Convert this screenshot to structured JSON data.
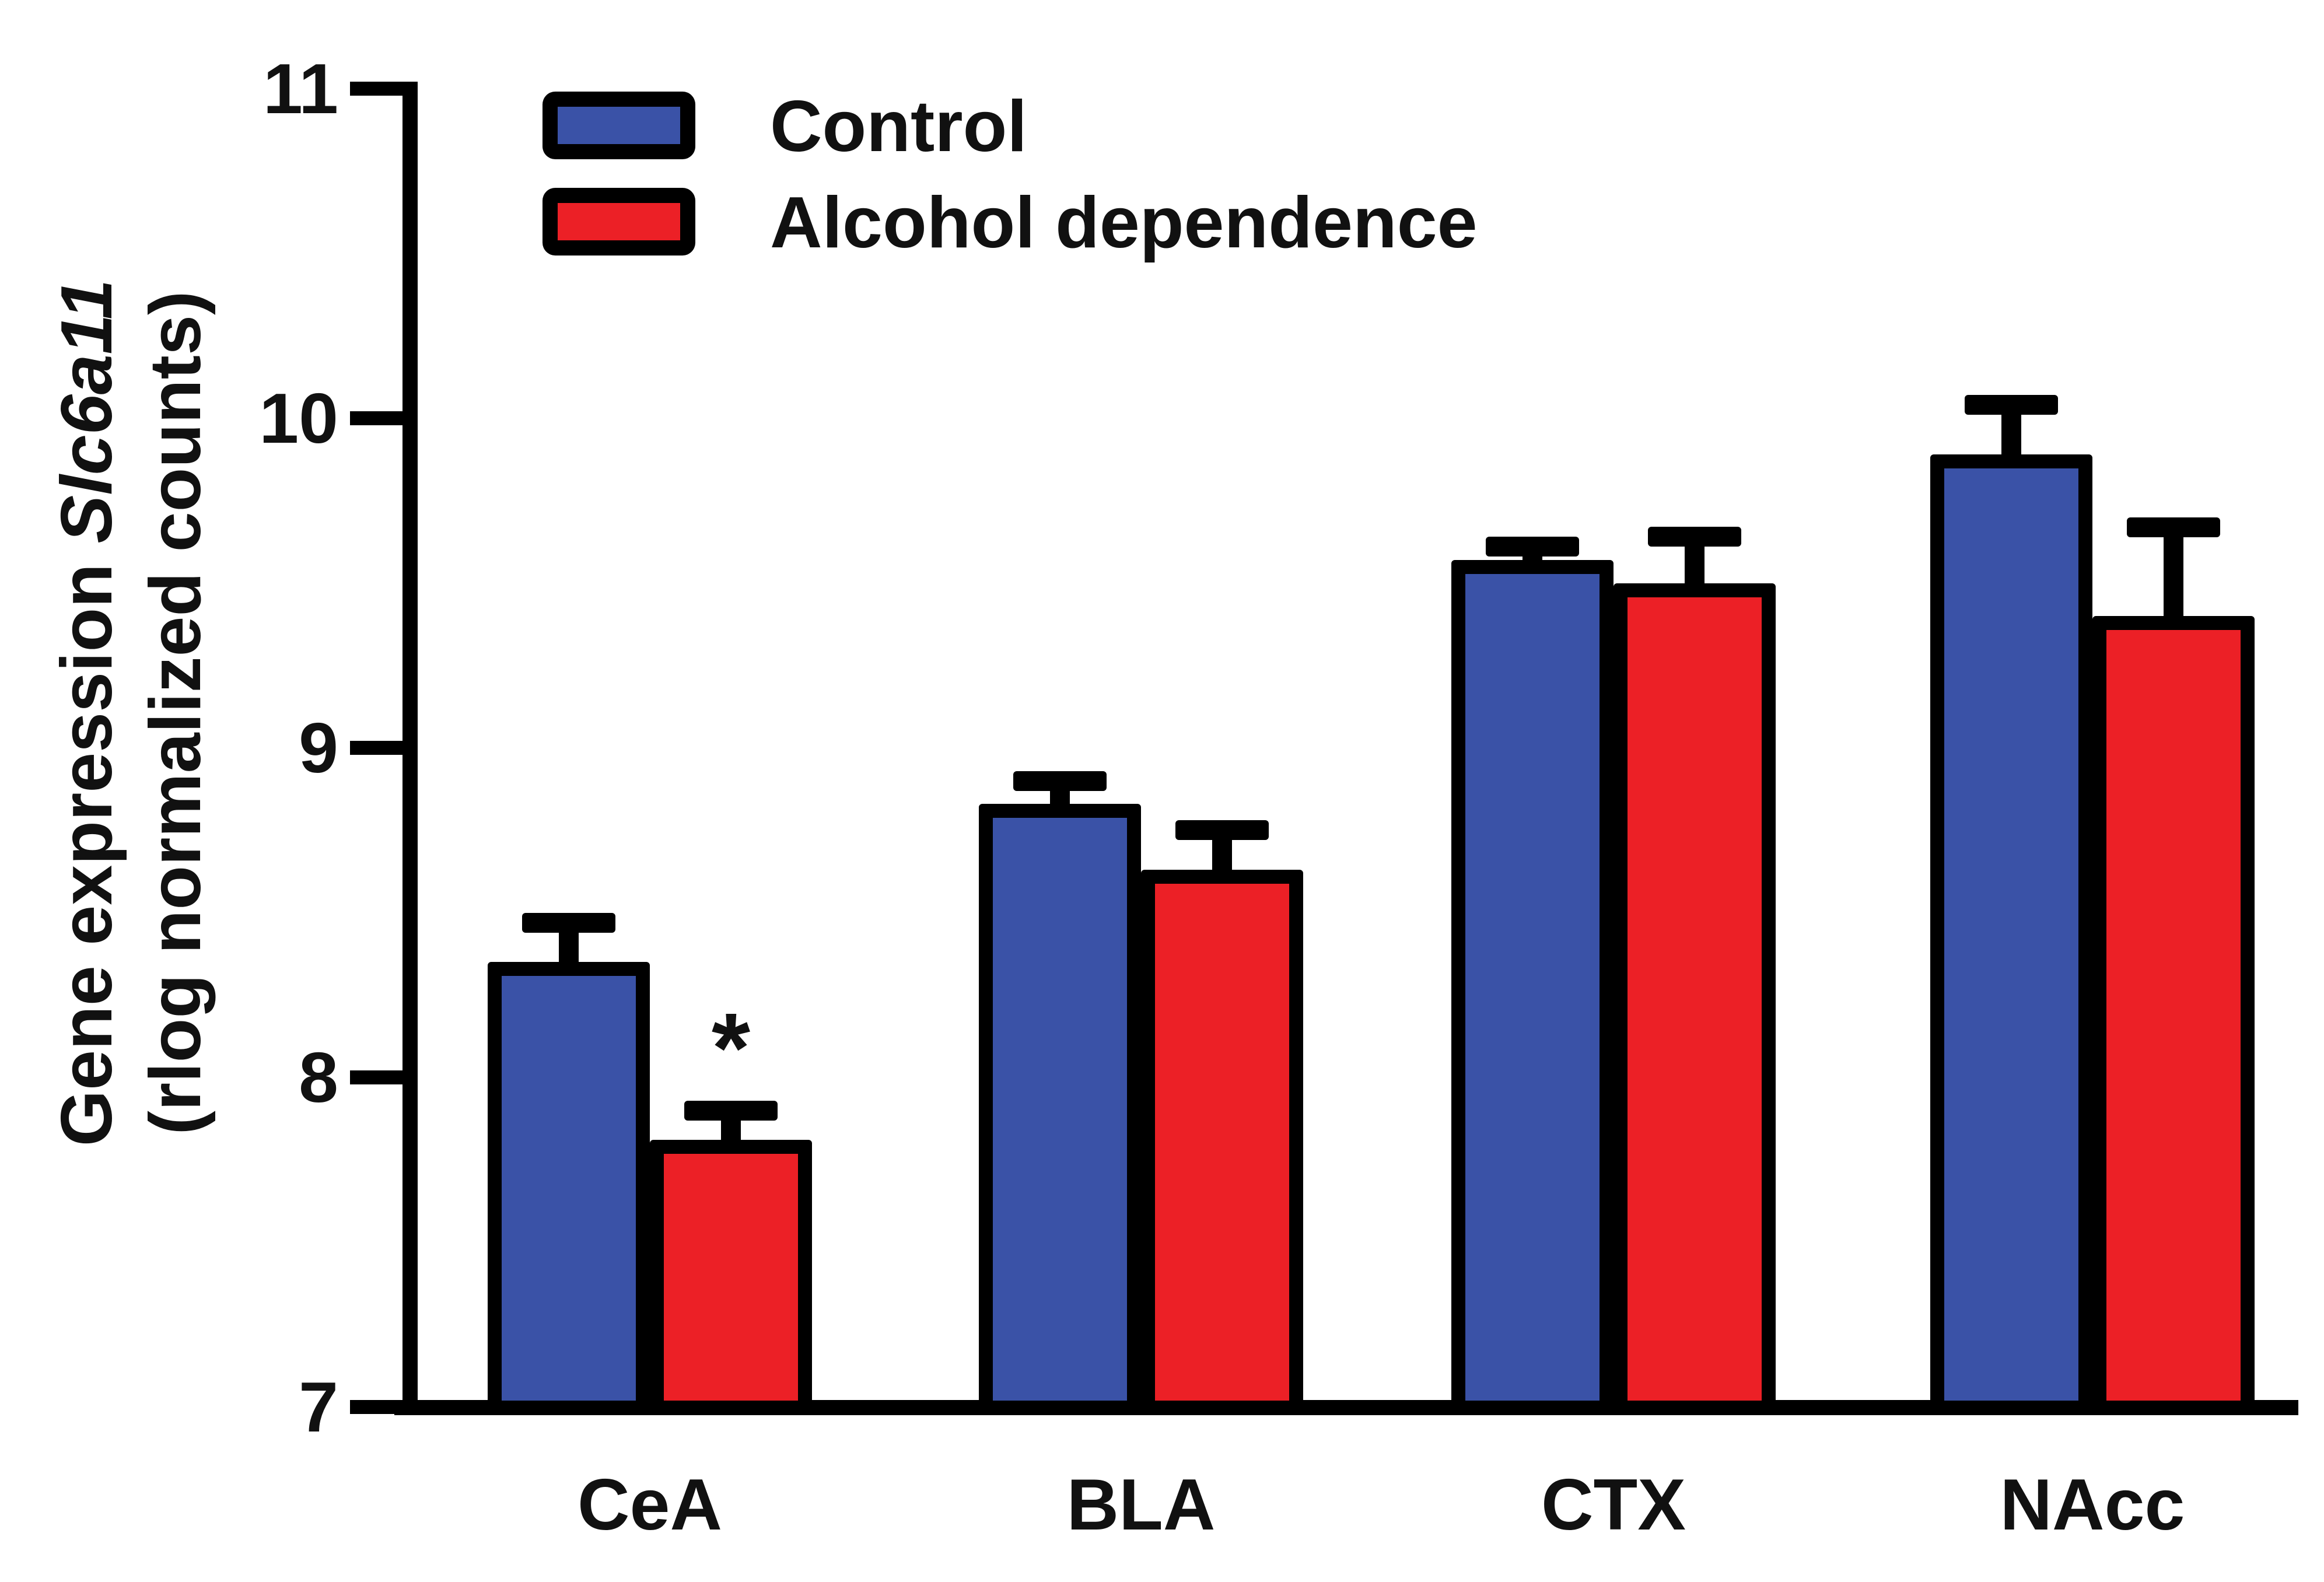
{
  "figure": {
    "background": "#ffffff"
  },
  "ylabel": {
    "line1_prefix": "Gene expression ",
    "line1_gene": "Slc6a11",
    "line2": "(rlog normalized counts)"
  },
  "legend": {
    "position": "top-left-inside",
    "items": [
      {
        "label": "Control",
        "color": "#3A52A7"
      },
      {
        "label": "Alcohol dependence",
        "color": "#EC2026"
      }
    ]
  },
  "chart_data": {
    "type": "bar",
    "categories": [
      "CeA",
      "BLA",
      "CTX",
      "NAcc"
    ],
    "series": [
      {
        "name": "Control",
        "color": "#3A52A7",
        "values": [
          8.35,
          8.83,
          9.57,
          9.89
        ],
        "errors": [
          0.15,
          0.1,
          0.07,
          0.18
        ]
      },
      {
        "name": "Alcohol dependence",
        "color": "#EC2026",
        "values": [
          7.81,
          8.63,
          9.5,
          9.4
        ],
        "errors": [
          0.12,
          0.15,
          0.17,
          0.3
        ]
      }
    ],
    "error_bars": "SEM, upper only",
    "significance": [
      {
        "category": "CeA",
        "series": "Alcohol dependence",
        "symbol": "*"
      }
    ],
    "title": "",
    "xlabel": "",
    "ylabel": "Gene expression Slc6a11 (rlog normalized counts)",
    "ylim": [
      7,
      11
    ],
    "yticks": [
      7,
      8,
      9,
      10,
      11
    ],
    "grid": false,
    "bar_outline_color": "#000000",
    "axis_color": "#000000",
    "legend_position": "upper left"
  }
}
